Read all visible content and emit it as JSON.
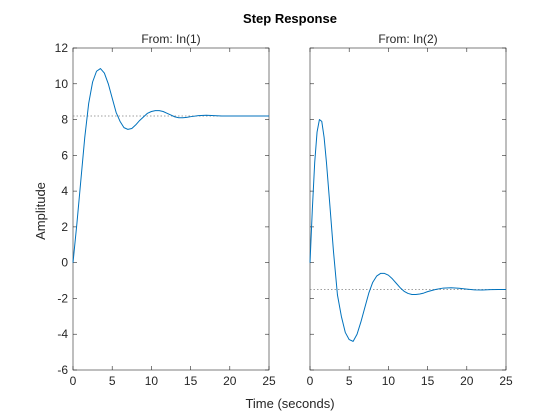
{
  "chart_data": {
    "type": "line",
    "title": "Step Response",
    "xlabel": "Time (seconds)",
    "ylabel": "Amplitude",
    "xlim": [
      0,
      25
    ],
    "ylim": [
      -6,
      12
    ],
    "xticks": [
      0,
      5,
      10,
      15,
      20,
      25
    ],
    "yticks": [
      -6,
      -4,
      -2,
      0,
      2,
      4,
      6,
      8,
      10,
      12
    ],
    "grid": false,
    "line_color": "#0072bd",
    "steady_state_line_color": "#808080",
    "panels": [
      {
        "title": "From: In(1)",
        "steady_state": 8.2,
        "series": [
          {
            "x": [
              0,
              0.5,
              1,
              1.5,
              2,
              2.5,
              3,
              3.5,
              4,
              4.5,
              5,
              5.5,
              6,
              6.5,
              7,
              7.5,
              8,
              8.5,
              9,
              9.5,
              10,
              10.5,
              11,
              11.5,
              12,
              12.5,
              13,
              13.5,
              14,
              14.5,
              15,
              16,
              17,
              18,
              19,
              20,
              21,
              22,
              23,
              24,
              25
            ],
            "y": [
              0,
              2.2,
              4.6,
              7.0,
              8.9,
              10.1,
              10.7,
              10.85,
              10.6,
              10.0,
              9.2,
              8.4,
              7.9,
              7.55,
              7.45,
              7.5,
              7.7,
              7.95,
              8.15,
              8.35,
              8.45,
              8.5,
              8.5,
              8.45,
              8.35,
              8.25,
              8.15,
              8.1,
              8.1,
              8.12,
              8.16,
              8.22,
              8.24,
              8.22,
              8.2,
              8.2,
              8.2,
              8.2,
              8.2,
              8.2,
              8.2
            ]
          }
        ]
      },
      {
        "title": "From: In(2)",
        "steady_state": -1.5,
        "series": [
          {
            "x": [
              0,
              0.3,
              0.6,
              0.9,
              1.2,
              1.5,
              1.8,
              2.1,
              2.5,
              3,
              3.5,
              4,
              4.5,
              5,
              5.5,
              6,
              6.5,
              7,
              7.5,
              8,
              8.5,
              9,
              9.5,
              10,
              10.5,
              11,
              11.5,
              12,
              12.5,
              13,
              13.5,
              14,
              14.5,
              15,
              16,
              17,
              18,
              19,
              20,
              21,
              22,
              23,
              24,
              25
            ],
            "y": [
              0,
              3.0,
              5.6,
              7.3,
              8.0,
              7.9,
              7.0,
              5.6,
              3.4,
              0.6,
              -1.8,
              -3.0,
              -3.9,
              -4.3,
              -4.4,
              -4.0,
              -3.3,
              -2.5,
              -1.7,
              -1.1,
              -0.75,
              -0.6,
              -0.6,
              -0.7,
              -0.9,
              -1.15,
              -1.4,
              -1.6,
              -1.72,
              -1.78,
              -1.78,
              -1.75,
              -1.7,
              -1.62,
              -1.5,
              -1.42,
              -1.4,
              -1.43,
              -1.48,
              -1.52,
              -1.53,
              -1.51,
              -1.5,
              -1.5
            ]
          }
        ]
      }
    ]
  }
}
